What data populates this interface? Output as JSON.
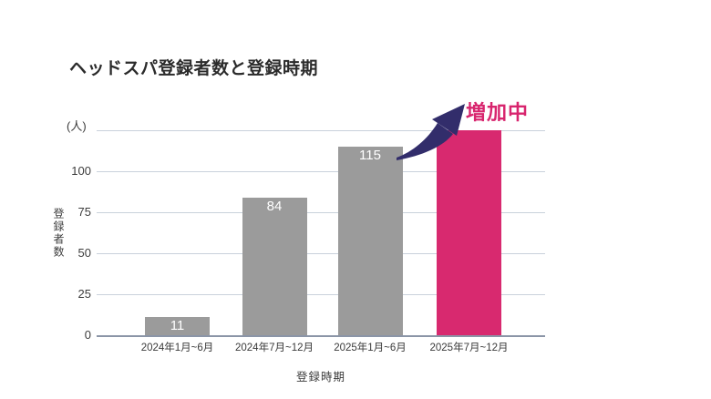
{
  "title": "ヘッドスパ登録者数と登録時期",
  "annotation": {
    "label": "増加中",
    "color": "#d8256e"
  },
  "chart_data": {
    "type": "bar",
    "title": "ヘッドスパ登録者数と登録時期",
    "categories": [
      "2024年1月~6月",
      "2024年7月~12月",
      "2025年1月~6月",
      "2025年7月~12月"
    ],
    "values": [
      11,
      84,
      115,
      125
    ],
    "bar_labels": [
      "11",
      "84",
      "115",
      ""
    ],
    "bar_colors": [
      "#9b9b9b",
      "#9b9b9b",
      "#9b9b9b",
      "#d8296f"
    ],
    "highlight_index": 3,
    "xlabel": "登録時期",
    "ylabel": "登録者数",
    "y_unit": "(人)",
    "ylim": [
      0,
      125
    ],
    "yticks": [
      0,
      25,
      50,
      75,
      100
    ],
    "grid": true,
    "legend": "none",
    "annotation": "増加中"
  },
  "colors": {
    "bar_gray": "#9b9b9b",
    "bar_pink": "#d8296f",
    "arrow_navy": "#322d6b",
    "gridline": "#c9d1db",
    "baseline": "#8b95a7",
    "text": "#3c3c3c"
  }
}
